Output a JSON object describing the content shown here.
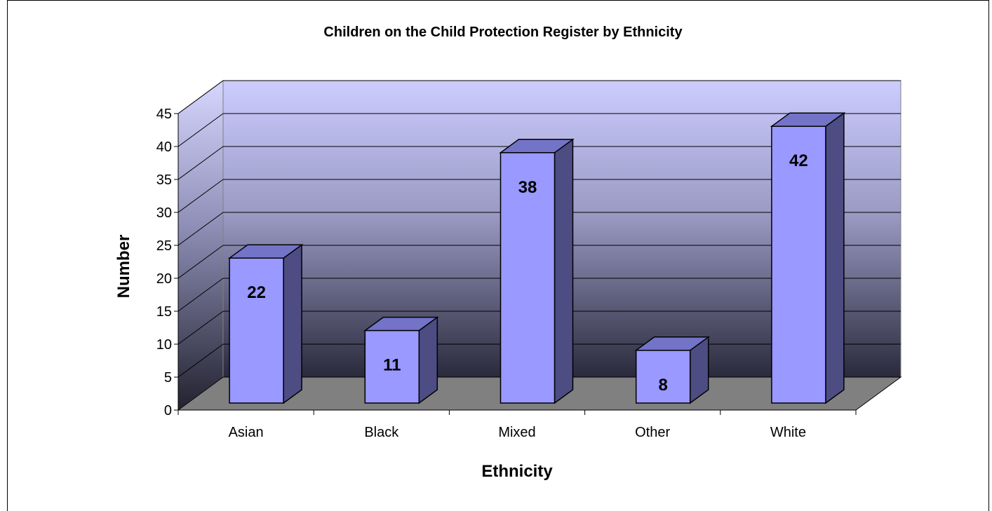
{
  "chart_data": {
    "type": "bar",
    "title": "Children on the Child Protection Register by Ethnicity",
    "xlabel": "Ethnicity",
    "ylabel": "Number",
    "categories": [
      "Asian",
      "Black",
      "Mixed",
      "Other",
      "White"
    ],
    "values": [
      22,
      11,
      38,
      8,
      42
    ],
    "data_labels": [
      "22",
      "11",
      "38",
      "8",
      "42"
    ],
    "ylim": [
      0,
      45
    ],
    "yticks": [
      "0",
      "5",
      "10",
      "15",
      "20",
      "25",
      "30",
      "35",
      "40",
      "45"
    ],
    "grid": true,
    "legend": "none",
    "style": "3d-column",
    "colors": {
      "bar_front": "#9999ff",
      "bar_top": "#7373c8",
      "bar_side": "#4d4d84",
      "floor": "#808080",
      "wall_top": "#ccccff",
      "wall_bottom": "#2a2a3c"
    }
  }
}
